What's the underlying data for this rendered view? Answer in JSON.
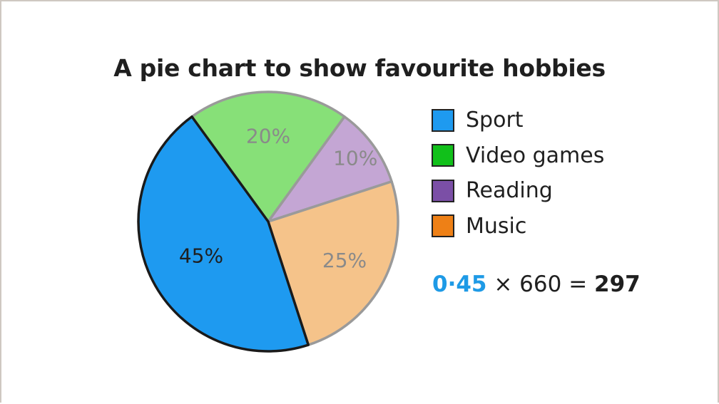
{
  "chart_data": {
    "type": "pie",
    "title": "A pie chart to show favourite hobbies",
    "slices": [
      {
        "name": "Sport",
        "value": 45,
        "label": "45%",
        "color": "#1e9af0",
        "label_color": "#1f1f1f"
      },
      {
        "name": "Video games",
        "value": 20,
        "label": "20%",
        "color": "#87e078",
        "label_color": "#8a8a8a"
      },
      {
        "name": "Reading",
        "value": 10,
        "label": "10%",
        "color": "#c4a6d4",
        "label_color": "#8a8a8a"
      },
      {
        "name": "Music",
        "value": 25,
        "label": "25%",
        "color": "#f5c38a",
        "label_color": "#8a8a8a"
      }
    ],
    "legend": {
      "placement": "right",
      "items": [
        {
          "name": "Sport",
          "color": "#1e9af0"
        },
        {
          "name": "Video games",
          "color": "#11c01a"
        },
        {
          "name": "Reading",
          "color": "#7b4fa6"
        },
        {
          "name": "Music",
          "color": "#ee8016"
        }
      ]
    },
    "highlighted_slice": "Sport"
  },
  "calculation": {
    "multiplier": "0·45",
    "rest": " × 660 = ",
    "result": "297",
    "multiplier_color": "#1e9ae6"
  }
}
